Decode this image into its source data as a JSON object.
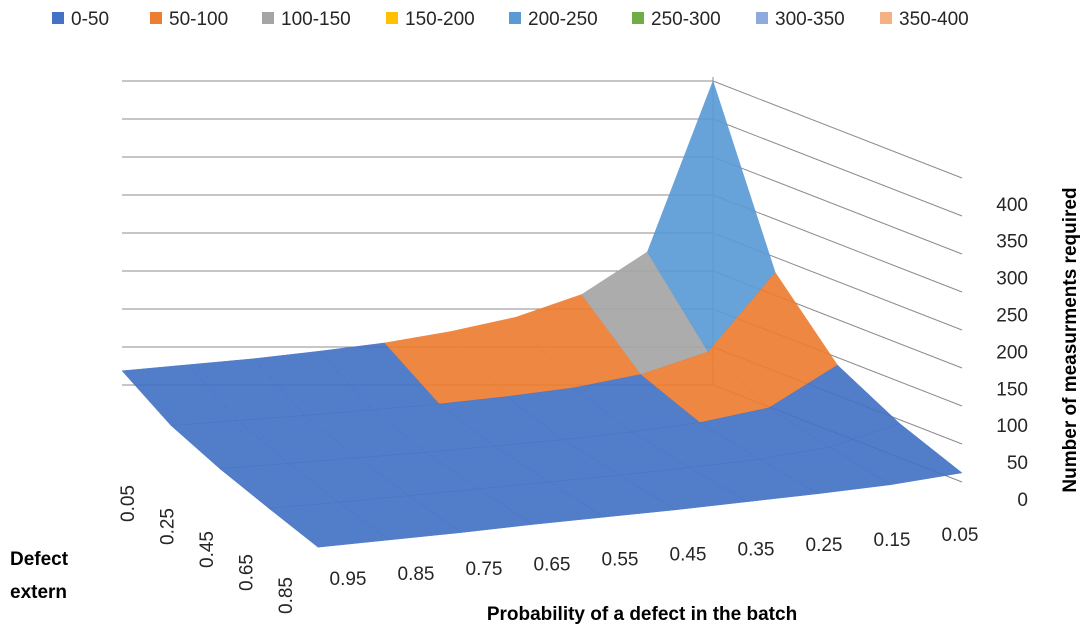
{
  "chart_data": {
    "type": "surface",
    "legend": [
      {
        "label": "0-50",
        "color": "#4472C4"
      },
      {
        "label": "50-100",
        "color": "#ED7D31"
      },
      {
        "label": "100-150",
        "color": "#A5A5A5"
      },
      {
        "label": "150-200",
        "color": "#FFC000"
      },
      {
        "label": "200-250",
        "color": "#5B9BD5"
      },
      {
        "label": "250-300",
        "color": "#70AD47"
      },
      {
        "label": "300-350",
        "color": "#8FAADC"
      },
      {
        "label": "350-400",
        "color": "#F4B183"
      }
    ],
    "legend_position": "top",
    "x_axis": {
      "title": "Probability of a defect in the batch",
      "ticks": [
        "0.95",
        "0.85",
        "0.75",
        "0.65",
        "0.55",
        "0.45",
        "0.35",
        "0.25",
        "0.15",
        "0.05"
      ]
    },
    "depth_axis": {
      "title_line1": "Defect",
      "title_line2": "extern",
      "ticks": [
        "0.05",
        "0.25",
        "0.45",
        "0.65",
        "0.85"
      ]
    },
    "z_axis": {
      "title": "Number of measurments required",
      "ticks": [
        "0",
        "50",
        "100",
        "150",
        "200",
        "250",
        "300",
        "350",
        "400"
      ],
      "range": [
        0,
        400
      ]
    },
    "surface_values": {
      "x": [
        0.95,
        0.85,
        0.75,
        0.65,
        0.55,
        0.45,
        0.35,
        0.25,
        0.15,
        0.05
      ],
      "depth": [
        0.05,
        0.25,
        0.45,
        0.65,
        0.85
      ],
      "z_rows": [
        [
          45,
          50,
          55,
          62,
          70,
          82,
          98,
          125,
          178,
          400
        ],
        [
          20,
          22,
          24,
          27,
          30,
          35,
          42,
          55,
          80,
          180
        ],
        [
          10,
          11,
          12,
          13,
          15,
          17,
          21,
          27,
          40,
          90
        ],
        [
          5,
          5,
          6,
          7,
          8,
          9,
          11,
          14,
          22,
          45
        ],
        [
          1,
          1,
          1,
          2,
          2,
          2,
          3,
          4,
          6,
          12
        ]
      ]
    },
    "grid": true
  }
}
